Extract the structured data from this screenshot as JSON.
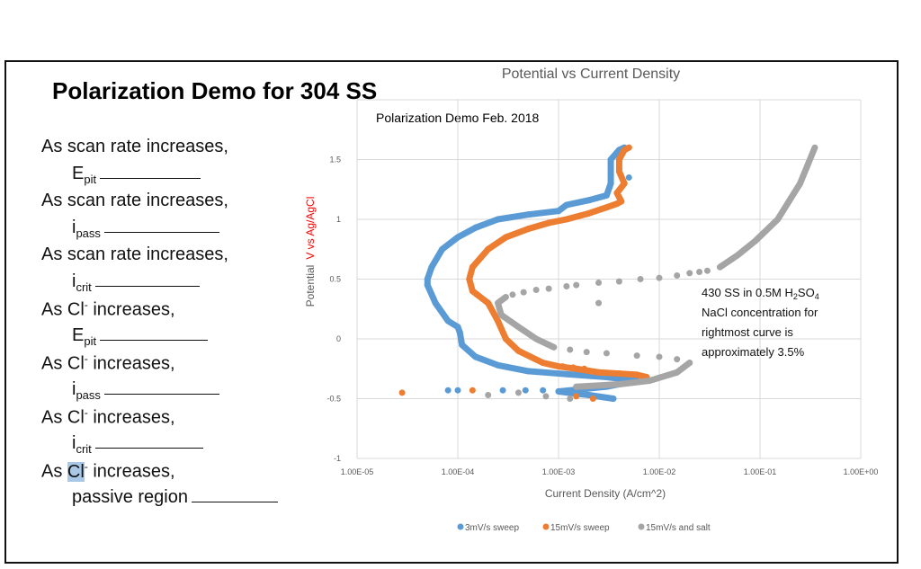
{
  "slide": {
    "title": "Polarization Demo for 304 SS",
    "questions": [
      {
        "prompt": "As scan rate increases,",
        "symbol": "E",
        "sub": "pit"
      },
      {
        "prompt": "As scan rate increases,",
        "symbol": "i",
        "sub": "pass"
      },
      {
        "prompt": "As scan rate increases,",
        "symbol": "i",
        "sub": "crit"
      },
      {
        "prompt_a": "As C",
        "prompt_b": "l",
        "sup": "-",
        "prompt_c": " increases,",
        "symbol": "E",
        "sub": "pit"
      },
      {
        "prompt_a": "As C",
        "prompt_b": "l",
        "sup": "-",
        "prompt_c": " increases,",
        "symbol": "i",
        "sub": "pass"
      },
      {
        "prompt_a": "As C",
        "prompt_b": "l",
        "sup": "-",
        "prompt_c": " increases,",
        "symbol": "i",
        "sub": "crit"
      },
      {
        "prompt_a": "As ",
        "prompt_hl": "Cl",
        "sup": "-",
        "prompt_c": " increases,",
        "answer_text": "passive region"
      }
    ]
  },
  "chart_data": {
    "type": "scatter",
    "title": "Potential vs Current Density",
    "subtitle": "Polarization Demo Feb. 2018",
    "xlabel": "Current Density (A/cm^2)",
    "ylabel_a": "Potential",
    "ylabel_b": "V vs Ag/AgCl",
    "ylabel_b_color": "#ff0000",
    "xscale": "log",
    "xlim": [
      1e-05,
      1
    ],
    "ylim": [
      -1,
      2
    ],
    "xticks": [
      "1.00E-05",
      "1.00E-04",
      "1.00E-03",
      "1.00E-02",
      "1.00E-01",
      "1.00E+00"
    ],
    "yticks": [
      "-1",
      "-0.5",
      "0",
      "0.5",
      "1",
      "1.5"
    ],
    "grid": true,
    "legend_position": "bottom",
    "annotation": {
      "line1_a": "430 SS in 0.5M H",
      "line1_sub1": "2",
      "line1_b": "SO",
      "line1_sub2": "4",
      "line2": "NaCl concentration for",
      "line3": "rightmost curve is",
      "line4": "approximately 3.5%"
    },
    "series": [
      {
        "name": "3mV/s sweep",
        "color": "#5b9bd5",
        "points": [
          [
            0.0035,
            -0.5
          ],
          [
            0.002,
            -0.47
          ],
          [
            0.001,
            -0.44
          ],
          [
            0.003,
            -0.4
          ],
          [
            0.006,
            -0.35
          ],
          [
            0.003,
            -0.32
          ],
          [
            0.001,
            -0.29
          ],
          [
            0.0005,
            -0.27
          ],
          [
            0.00025,
            -0.22
          ],
          [
            0.00015,
            -0.15
          ],
          [
            0.00011,
            -0.05
          ],
          [
            0.000105,
            0.05
          ],
          [
            0.0001,
            0.1
          ],
          [
            8e-05,
            0.15
          ],
          [
            6e-05,
            0.3
          ],
          [
            5e-05,
            0.45
          ],
          [
            5e-05,
            0.5
          ],
          [
            5.5e-05,
            0.6
          ],
          [
            7e-05,
            0.75
          ],
          [
            0.0001,
            0.85
          ],
          [
            0.00015,
            0.93
          ],
          [
            0.00025,
            1.0
          ],
          [
            0.0005,
            1.04
          ],
          [
            0.001,
            1.07
          ],
          [
            0.0012,
            1.12
          ],
          [
            0.002,
            1.16
          ],
          [
            0.003,
            1.2
          ],
          [
            0.0033,
            1.3
          ],
          [
            0.0033,
            1.5
          ],
          [
            0.004,
            1.58
          ],
          [
            0.0045,
            1.6
          ]
        ],
        "scattered": [
          [
            8e-05,
            -0.43
          ],
          [
            0.0001,
            -0.43
          ],
          [
            0.00028,
            -0.43
          ],
          [
            0.00047,
            -0.43
          ],
          [
            0.0007,
            -0.43
          ],
          [
            0.005,
            1.35
          ]
        ]
      },
      {
        "name": "15mV/s sweep",
        "color": "#ed7d31",
        "points": [
          [
            0.0075,
            -0.32
          ],
          [
            0.006,
            -0.3
          ],
          [
            0.004,
            -0.29
          ],
          [
            0.0025,
            -0.28
          ],
          [
            0.0015,
            -0.25
          ],
          [
            0.001,
            -0.23
          ],
          [
            0.0007,
            -0.2
          ],
          [
            0.0004,
            -0.1
          ],
          [
            0.0003,
            0.0
          ],
          [
            0.00025,
            0.15
          ],
          [
            0.0002,
            0.3
          ],
          [
            0.00014,
            0.4
          ],
          [
            0.00013,
            0.5
          ],
          [
            0.00014,
            0.6
          ],
          [
            0.0002,
            0.75
          ],
          [
            0.0003,
            0.85
          ],
          [
            0.0005,
            0.92
          ],
          [
            0.0008,
            0.97
          ],
          [
            0.0012,
            1.0
          ],
          [
            0.002,
            1.05
          ],
          [
            0.003,
            1.1
          ],
          [
            0.0038,
            1.13
          ],
          [
            0.0042,
            1.15
          ],
          [
            0.0038,
            1.22
          ],
          [
            0.0045,
            1.3
          ],
          [
            0.004,
            1.4
          ],
          [
            0.004,
            1.5
          ],
          [
            0.0045,
            1.58
          ],
          [
            0.005,
            1.6
          ]
        ],
        "scattered": [
          [
            2.8e-05,
            -0.45
          ],
          [
            0.00014,
            -0.43
          ],
          [
            0.0015,
            -0.48
          ],
          [
            0.0022,
            -0.5
          ],
          [
            0.0011,
            -0.23
          ],
          [
            0.0014,
            -0.24
          ],
          [
            0.0018,
            -0.25
          ],
          [
            0.0025,
            -0.28
          ],
          [
            0.004,
            -0.29
          ]
        ]
      },
      {
        "name": "15mV/s and salt",
        "color": "#a5a5a5",
        "points": [
          [
            0.0015,
            -0.4
          ],
          [
            0.004,
            -0.38
          ],
          [
            0.008,
            -0.35
          ],
          [
            0.015,
            -0.28
          ],
          [
            0.02,
            -0.2
          ],
          [
            0.0025,
            0.3
          ]
        ],
        "segments": [
          [
            [
              0.0015,
              -0.4
            ],
            [
              0.004,
              -0.38
            ],
            [
              0.008,
              -0.35
            ],
            [
              0.015,
              -0.28
            ],
            [
              0.02,
              -0.2
            ]
          ],
          [
            [
              0.0009,
              -0.07
            ],
            [
              0.0006,
              0.0
            ],
            [
              0.0004,
              0.1
            ],
            [
              0.00027,
              0.2
            ],
            [
              0.00025,
              0.3
            ],
            [
              0.0003,
              0.35
            ]
          ],
          [
            [
              0.04,
              0.6
            ],
            [
              0.06,
              0.7
            ],
            [
              0.09,
              0.82
            ],
            [
              0.15,
              1.0
            ],
            [
              0.25,
              1.3
            ],
            [
              0.35,
              1.6
            ]
          ]
        ],
        "scattered": [
          [
            0.0002,
            -0.47
          ],
          [
            0.0004,
            -0.45
          ],
          [
            0.00075,
            -0.48
          ],
          [
            0.0013,
            -0.5
          ],
          [
            0.015,
            -0.17
          ],
          [
            0.01,
            -0.15
          ],
          [
            0.006,
            -0.14
          ],
          [
            0.003,
            -0.12
          ],
          [
            0.0019,
            -0.11
          ],
          [
            0.0013,
            -0.09
          ],
          [
            0.00035,
            0.37
          ],
          [
            0.00045,
            0.39
          ],
          [
            0.0006,
            0.41
          ],
          [
            0.0008,
            0.42
          ],
          [
            0.0012,
            0.44
          ],
          [
            0.0015,
            0.45
          ],
          [
            0.0025,
            0.47
          ],
          [
            0.004,
            0.48
          ],
          [
            0.0065,
            0.5
          ],
          [
            0.01,
            0.51
          ],
          [
            0.015,
            0.53
          ],
          [
            0.02,
            0.55
          ],
          [
            0.025,
            0.56
          ],
          [
            0.03,
            0.57
          ]
        ]
      }
    ]
  }
}
